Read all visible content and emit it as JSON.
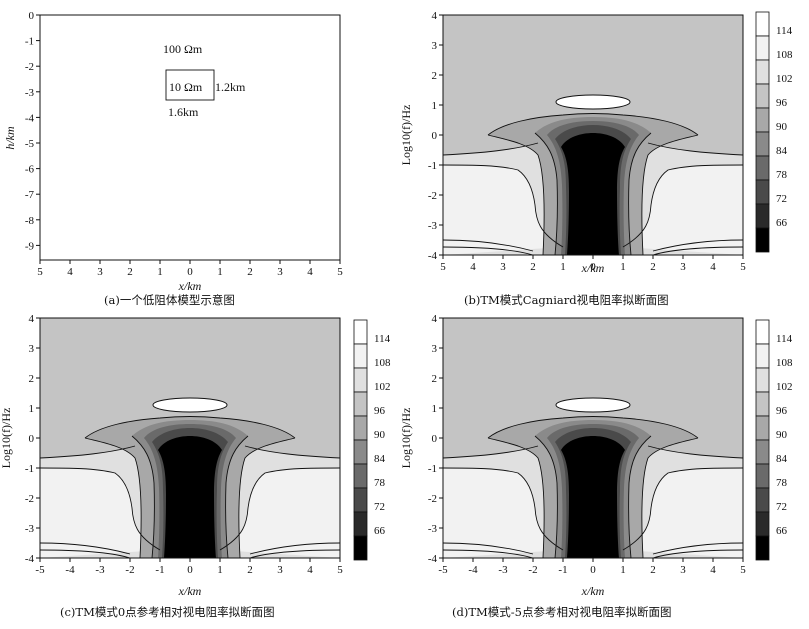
{
  "panels": [
    {
      "id": "a",
      "caption": "(a)一个低阻体模型示意图",
      "xlabel": "x/km",
      "ylabel": "h/km",
      "x_ticks": [
        "5",
        "4",
        "3",
        "2",
        "1",
        "0",
        "1",
        "2",
        "3",
        "4",
        "5"
      ],
      "y_ticks": [
        "0",
        "-1",
        "-2",
        "-3",
        "-4",
        "-5",
        "-6",
        "-7",
        "-8",
        "-9"
      ],
      "annotations": {
        "background": "100  Ωm",
        "block": "10  Ωm",
        "height": "1.2km",
        "width": "1.6km"
      }
    },
    {
      "id": "b",
      "caption": "(b)TM模式Cagniard视电阻率拟断面图",
      "xlabel": "x/km",
      "ylabel": "Log10(f)/Hz",
      "x_ticks": [
        "5",
        "4",
        "3",
        "2",
        "1",
        "0",
        "1",
        "2",
        "3",
        "4",
        "5"
      ],
      "y_ticks": [
        "4",
        "3",
        "2",
        "1",
        "0",
        "-1",
        "-2",
        "-3",
        "-4"
      ]
    },
    {
      "id": "c",
      "caption": "(c)TM模式0点参考相对视电阻率拟断面图",
      "xlabel": "x/km",
      "ylabel": "Log10(f)/Hz",
      "x_ticks": [
        "-5",
        "-4",
        "-3",
        "-2",
        "-1",
        "0",
        "1",
        "2",
        "3",
        "4",
        "5"
      ],
      "y_ticks": [
        "4",
        "3",
        "2",
        "1",
        "0",
        "-1",
        "-2",
        "-3",
        "-4"
      ]
    },
    {
      "id": "d",
      "caption": "(d)TM模式-5点参考相对视电阻率拟断面图",
      "xlabel": "x/km",
      "ylabel": "Log10(f)/Hz",
      "x_ticks": [
        "-5",
        "-4",
        "-3",
        "-2",
        "-1",
        "0",
        "1",
        "2",
        "3",
        "4",
        "5"
      ],
      "y_ticks": [
        "4",
        "3",
        "2",
        "1",
        "0",
        "-1",
        "-2",
        "-3",
        "-4"
      ]
    }
  ],
  "colorbar": {
    "labels": [
      "114",
      "108",
      "102",
      "96",
      "90",
      "84",
      "78",
      "72",
      "66"
    ],
    "fills": [
      "#ffffff",
      "#f2f2f2",
      "#e0e0e0",
      "#c4c4c4",
      "#a8a8a8",
      "#8a8a8a",
      "#6a6a6a",
      "#4a4a4a",
      "#2a2a2a",
      "#000000"
    ]
  },
  "chart_data": [
    {
      "type": "diagram",
      "panel": "a",
      "xlabel": "x/km",
      "ylabel": "h/km",
      "xlim": [
        -5,
        5
      ],
      "ylim": [
        -9.5,
        0
      ],
      "anomaly": {
        "x": [
          -0.8,
          0.8
        ],
        "h": [
          -2.4,
          -3.6
        ],
        "resistivity": "10 Ωm"
      },
      "background_resistivity": "100 Ωm"
    },
    {
      "type": "heatmap",
      "panel": "b",
      "xlabel": "x/km",
      "ylabel": "Log10(f)/Hz",
      "xlim": [
        -5,
        5
      ],
      "ylim": [
        -4,
        4
      ],
      "colorbar_levels": [
        66,
        72,
        78,
        84,
        90,
        96,
        102,
        108,
        114
      ]
    },
    {
      "type": "heatmap",
      "panel": "c",
      "xlabel": "x/km",
      "ylabel": "Log10(f)/Hz",
      "xlim": [
        -5,
        5
      ],
      "ylim": [
        -4,
        4
      ],
      "colorbar_levels": [
        66,
        72,
        78,
        84,
        90,
        96,
        102,
        108,
        114
      ]
    },
    {
      "type": "heatmap",
      "panel": "d",
      "xlabel": "x/km",
      "ylabel": "Log10(f)/Hz",
      "xlim": [
        -5,
        5
      ],
      "ylim": [
        -4,
        4
      ],
      "colorbar_levels": [
        66,
        72,
        78,
        84,
        90,
        96,
        102,
        108,
        114
      ]
    }
  ]
}
